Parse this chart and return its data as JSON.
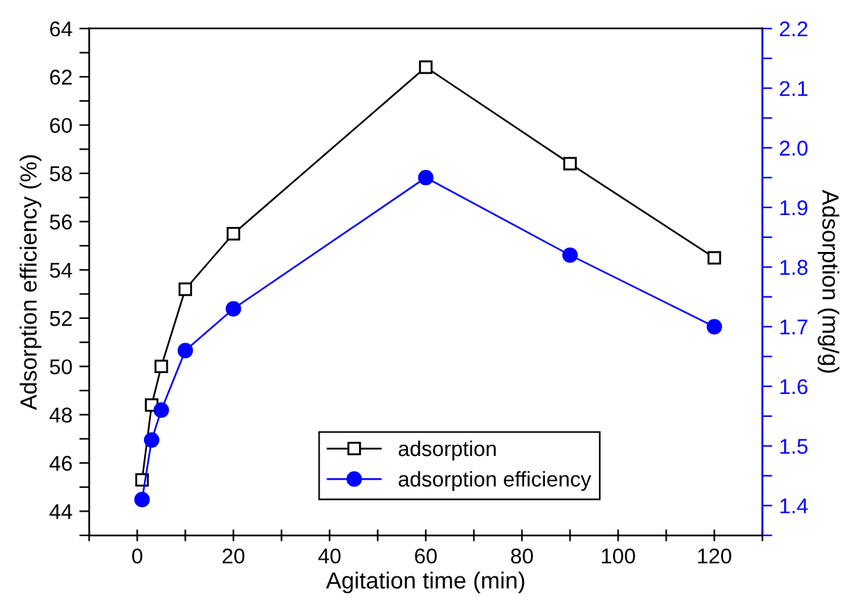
{
  "chart_data": {
    "type": "line",
    "xlabel": "Agitation time (min)",
    "ylabel": "Adsorption efficiency (%)",
    "y2label": "Adsorption (mg/g)",
    "x": [
      1,
      3,
      5,
      10,
      20,
      60,
      90,
      120
    ],
    "series": [
      {
        "name": "adsorption",
        "color": "#000000",
        "marker": "square",
        "values": [
          45.3,
          48.4,
          50.0,
          53.2,
          55.5,
          62.4,
          58.4,
          54.5
        ]
      },
      {
        "name": "adsorption efficiency",
        "color": "#0000ff",
        "marker": "circle",
        "axis": "y2",
        "values": [
          1.41,
          1.51,
          1.56,
          1.66,
          1.73,
          1.95,
          1.82,
          1.7
        ]
      }
    ],
    "xlim": [
      -10,
      130
    ],
    "xticks": [
      {
        "value": -10,
        "label": null
      },
      0,
      {
        "value": 10,
        "label": null
      },
      20,
      {
        "value": 30,
        "label": null
      },
      40,
      {
        "value": 50,
        "label": null
      },
      60,
      {
        "value": 70,
        "label": null
      },
      80,
      {
        "value": 90,
        "label": null
      },
      100,
      {
        "value": 110,
        "label": null
      },
      120,
      {
        "value": 130,
        "label": null
      }
    ],
    "ylim": [
      43,
      64
    ],
    "yticks": [
      {
        "value": 43,
        "label": null
      },
      44,
      {
        "value": 45,
        "label": null
      },
      46,
      {
        "value": 47,
        "label": null
      },
      48,
      {
        "value": 49,
        "label": null
      },
      50,
      {
        "value": 51,
        "label": null
      },
      52,
      {
        "value": 53,
        "label": null
      },
      54,
      {
        "value": 55,
        "label": null
      },
      56,
      {
        "value": 57,
        "label": null
      },
      58,
      {
        "value": 59,
        "label": null
      },
      60,
      {
        "value": 61,
        "label": null
      },
      62,
      {
        "value": 63,
        "label": null
      },
      64
    ],
    "y2lim": [
      1.35,
      2.2
    ],
    "y2ticks": [
      {
        "value": 1.35,
        "label": null
      },
      {
        "value": 1.4,
        "label": "1.4"
      },
      {
        "value": 1.45,
        "label": null
      },
      {
        "value": 1.5,
        "label": "1.5"
      },
      {
        "value": 1.55,
        "label": null
      },
      {
        "value": 1.6,
        "label": "1.6"
      },
      {
        "value": 1.65,
        "label": null
      },
      {
        "value": 1.7,
        "label": "1.7"
      },
      {
        "value": 1.75,
        "label": null
      },
      {
        "value": 1.8,
        "label": "1.8"
      },
      {
        "value": 1.85,
        "label": null
      },
      {
        "value": 1.9,
        "label": "1.9"
      },
      {
        "value": 1.95,
        "label": null
      },
      {
        "value": 2.0,
        "label": "2.0"
      },
      {
        "value": 2.05,
        "label": null
      },
      {
        "value": 2.1,
        "label": "2.1"
      },
      {
        "value": 2.15,
        "label": null
      },
      {
        "value": 2.2,
        "label": "2.2"
      }
    ],
    "grid": false,
    "legend": "bottom",
    "line_style": "solid"
  }
}
